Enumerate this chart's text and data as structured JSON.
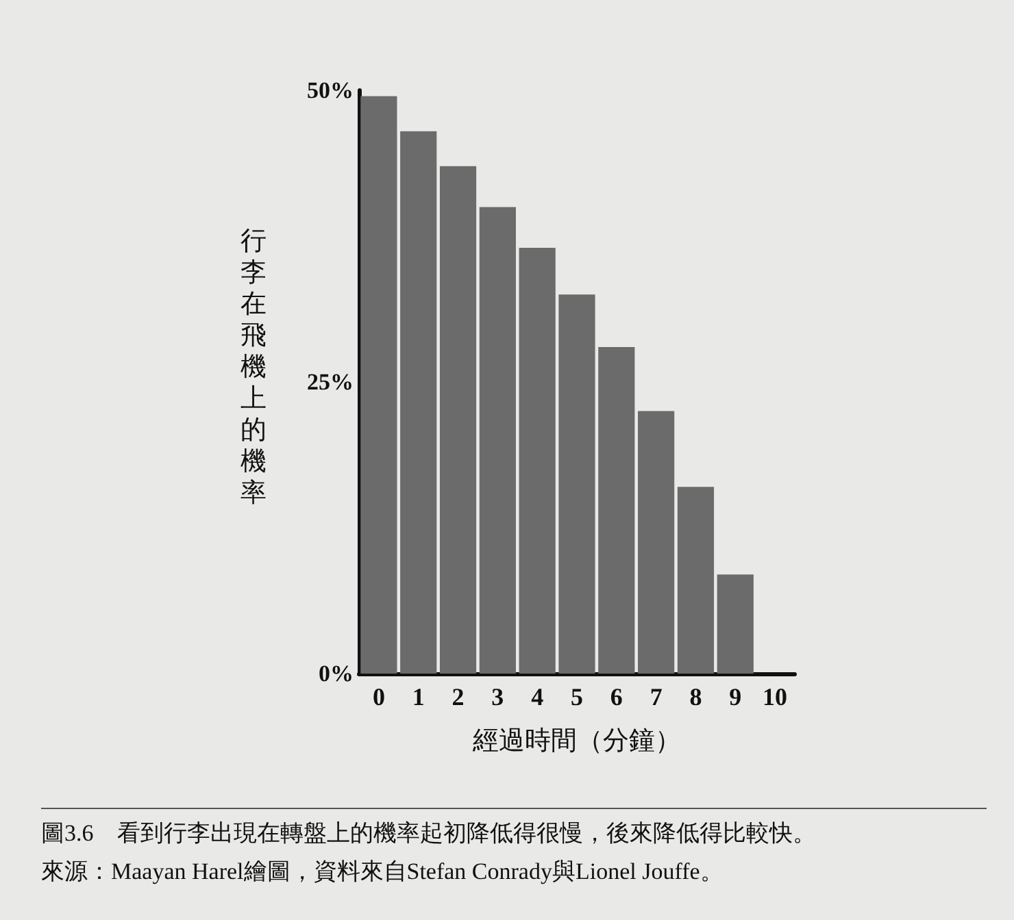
{
  "chart_data": {
    "type": "bar",
    "xlabel": "經過時間（分鐘）",
    "ylabel": "行李在飛機上的機率",
    "categories": [
      "0",
      "1",
      "2",
      "3",
      "4",
      "5",
      "6",
      "7",
      "8",
      "9",
      "10"
    ],
    "values": [
      49.5,
      46.5,
      43.5,
      40,
      36.5,
      32.5,
      28,
      22.5,
      16,
      8.5,
      0
    ],
    "color": "#6b6b6b",
    "ylim": [
      0,
      50
    ],
    "yticks": [
      {
        "value": 0,
        "label": "0%"
      },
      {
        "value": 25,
        "label": "25%"
      },
      {
        "value": 50,
        "label": "50%"
      }
    ],
    "grid": false,
    "annotations": [
      "圖3.6　看到行李出現在轉盤上的機率起初降低得很慢，後來降低得比較快。",
      "來源：Maayan Harel繪圖，資料來自Stefan Conrady與Lionel Jouffe。"
    ]
  }
}
